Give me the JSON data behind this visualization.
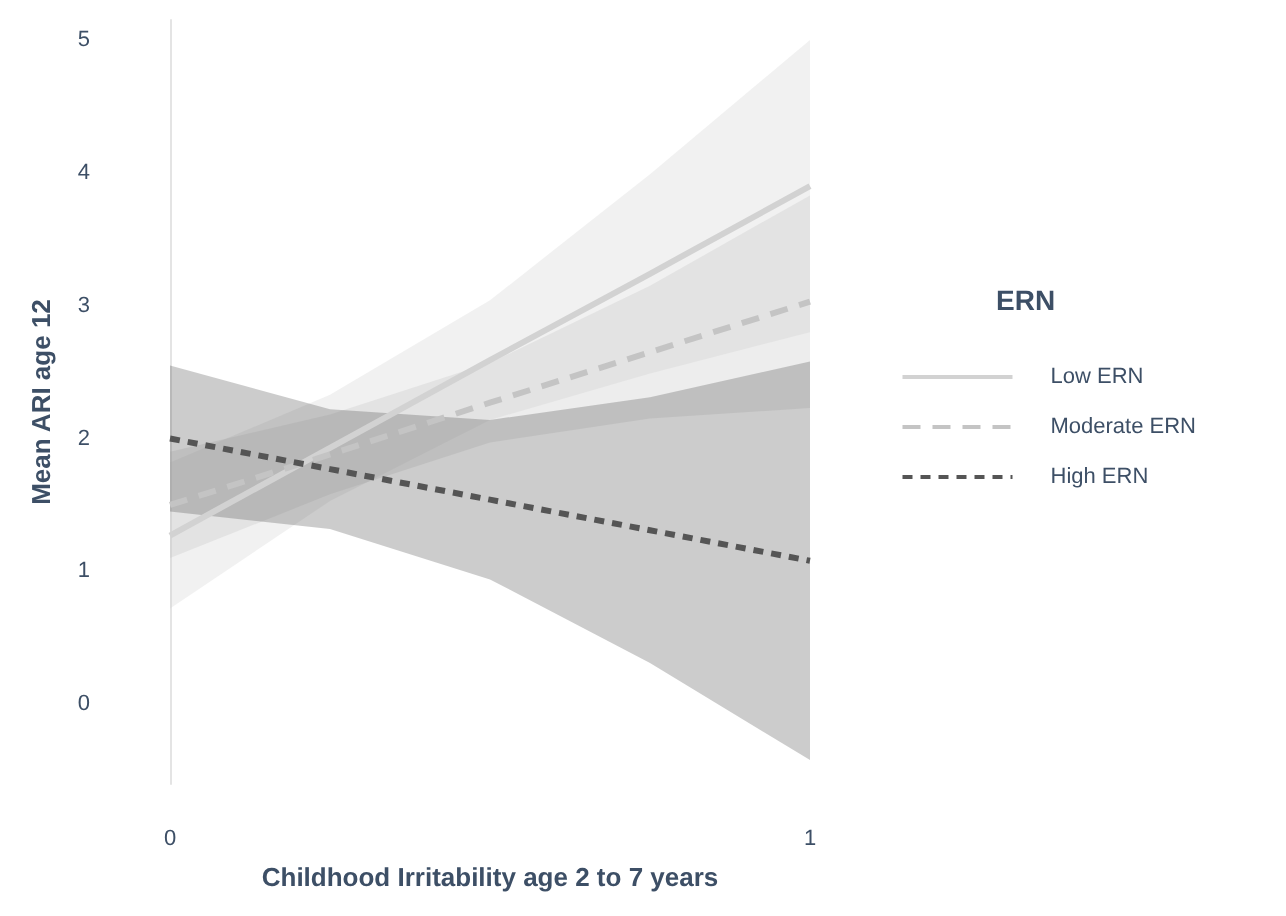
{
  "chart_data": {
    "type": "line",
    "xlabel": "Childhood Irritability age 2 to 7 years",
    "ylabel": "Mean ARI age 12",
    "legend_title": "ERN",
    "x": [
      0,
      0.25,
      0.5,
      0.75,
      1
    ],
    "xlim": [
      0,
      1
    ],
    "xticks": [
      0,
      1
    ],
    "ylim": [
      -0.6,
      5.15
    ],
    "yticks": [
      0,
      1,
      2,
      3,
      4,
      5
    ],
    "grid": false,
    "legend": "right",
    "marker": "none",
    "series": [
      {
        "name": "Low ERN",
        "color": "#d2d2d2",
        "line_style": "solid",
        "values": [
          1.27,
          1.93,
          2.59,
          3.24,
          3.9
        ],
        "lower": [
          0.72,
          1.53,
          2.14,
          2.49,
          2.8
        ],
        "upper": [
          1.82,
          2.33,
          3.04,
          3.99,
          5.0
        ]
      },
      {
        "name": "Moderate ERN",
        "color": "#c4c4c4",
        "line_style": "dashed",
        "values": [
          1.5,
          1.88,
          2.27,
          2.65,
          3.03
        ],
        "lower": [
          1.1,
          1.58,
          1.97,
          2.15,
          2.23
        ],
        "upper": [
          1.9,
          2.18,
          2.57,
          3.15,
          3.83
        ]
      },
      {
        "name": "High ERN",
        "color": "#555555",
        "line_style": "dotted",
        "values": [
          2.0,
          1.77,
          1.54,
          1.31,
          1.08
        ],
        "lower": [
          1.45,
          1.32,
          0.94,
          0.31,
          -0.42
        ],
        "upper": [
          2.55,
          2.22,
          2.14,
          2.31,
          2.58
        ]
      }
    ]
  }
}
